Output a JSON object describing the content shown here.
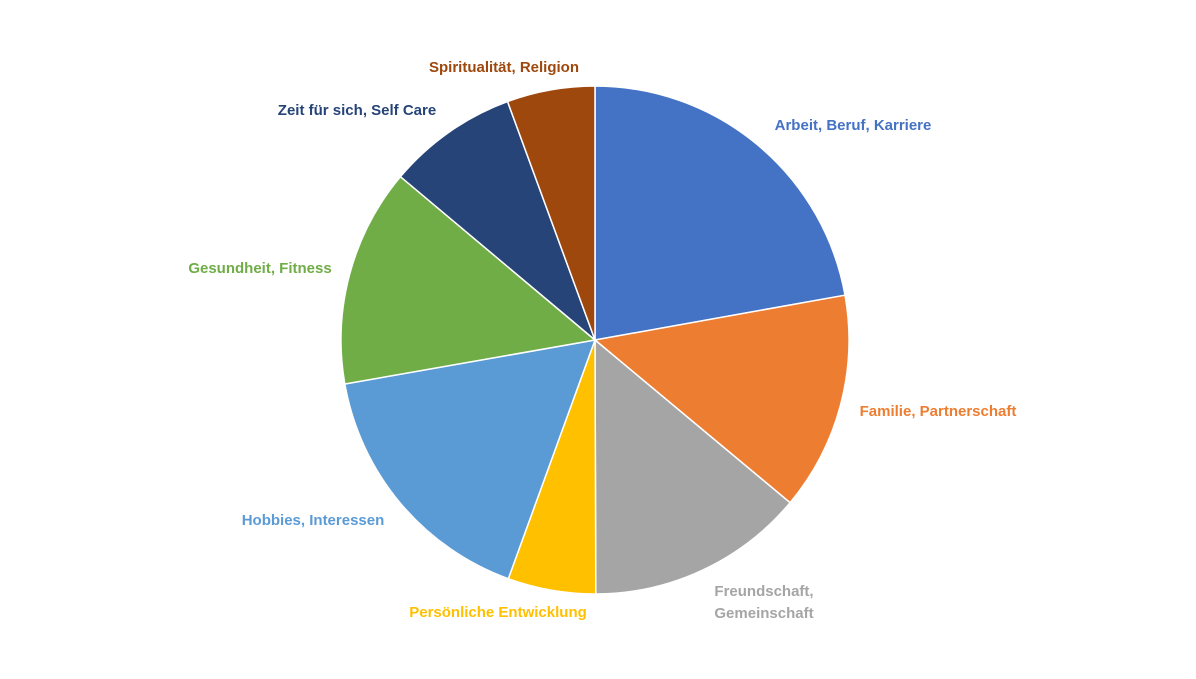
{
  "chart_data": {
    "type": "pie",
    "categories": [
      "Arbeit, Beruf, Karriere",
      "Familie, Partnerschaft",
      "Freundschaft, Gemeinschaft",
      "Persönliche Entwicklung",
      "Hobbies, Interessen",
      "Gesundheit, Fitness",
      "Zeit für sich, Self Care",
      "Spiritualität, Religion"
    ],
    "values": [
      22.2,
      13.9,
      13.9,
      5.6,
      16.7,
      13.9,
      8.3,
      5.6
    ],
    "colors": [
      "#4472c4",
      "#ed7d31",
      "#a5a5a5",
      "#ffc000",
      "#5b9bd5",
      "#70ad47",
      "#264478",
      "#9e480e"
    ]
  }
}
